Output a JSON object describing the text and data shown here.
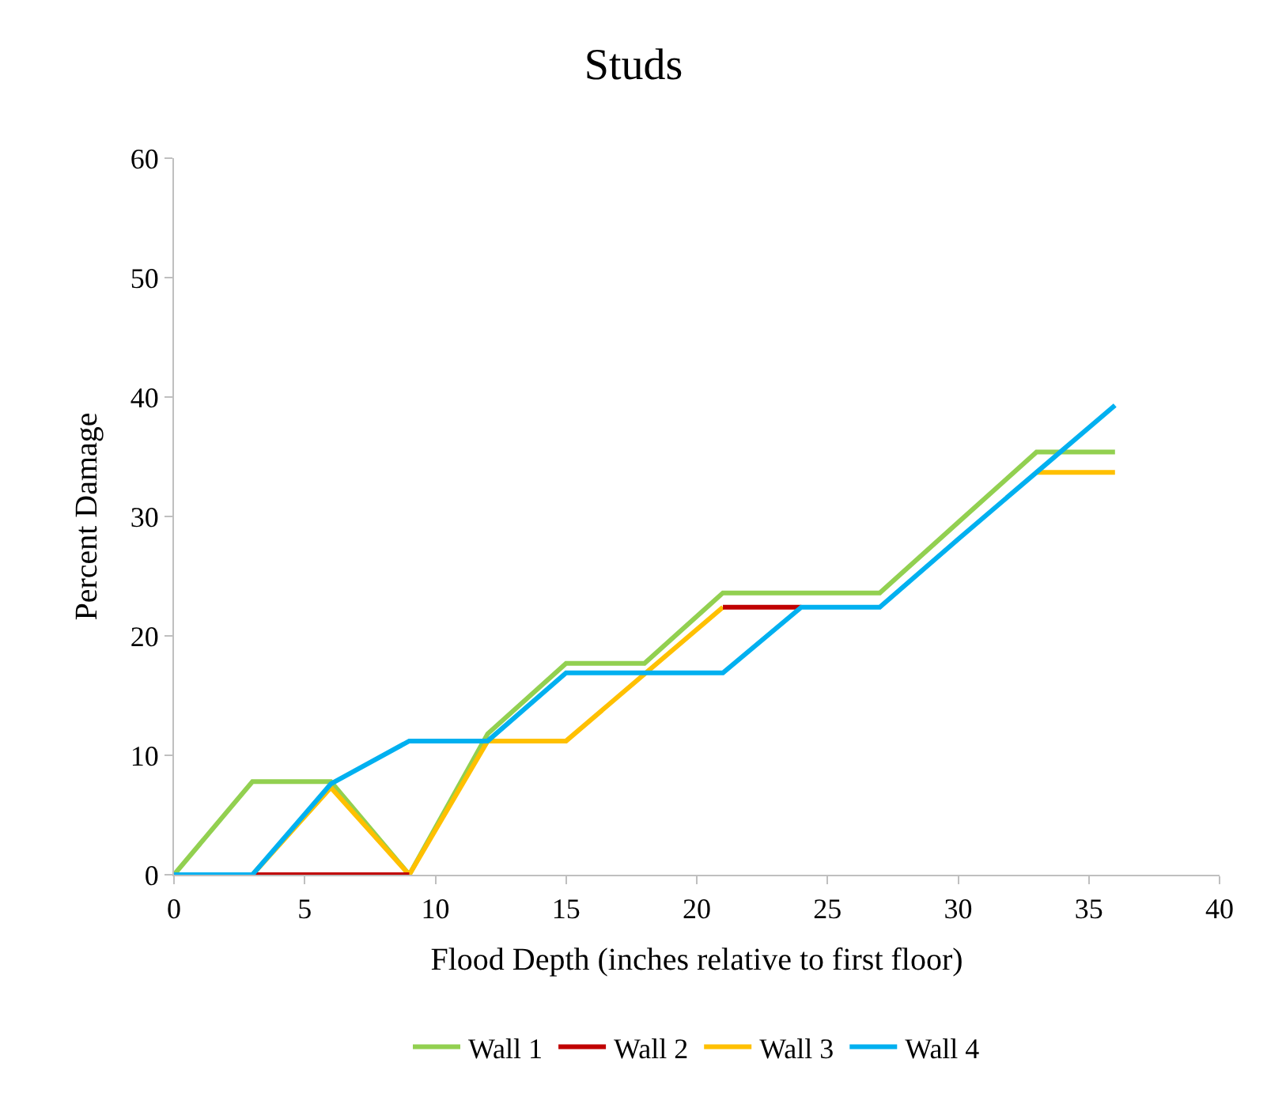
{
  "chart_data": {
    "type": "line",
    "title": "Studs",
    "xlabel": "Flood Depth (inches relative to first floor)",
    "ylabel": "Percent Damage",
    "x": [
      0,
      3,
      6,
      9,
      12,
      15,
      18,
      21,
      24,
      27,
      30,
      33,
      36
    ],
    "series": [
      {
        "name": "Wall 1",
        "color": "#92d050",
        "values": [
          0,
          7.8,
          7.8,
          0,
          11.8,
          17.7,
          17.7,
          23.6,
          23.6,
          23.6,
          29.5,
          35.4,
          35.4
        ]
      },
      {
        "name": "Wall 2",
        "color": "#c00000",
        "values": [
          null,
          0,
          0,
          0,
          null,
          null,
          null,
          22.4,
          22.4,
          null,
          null,
          null,
          null
        ]
      },
      {
        "name": "Wall 3",
        "color": "#ffc000",
        "values": [
          0,
          0,
          7.3,
          0,
          11.2,
          11.2,
          16.8,
          22.4,
          null,
          null,
          null,
          33.7,
          33.7
        ]
      },
      {
        "name": "Wall 4",
        "color": "#00b0f0",
        "values": [
          0,
          0,
          7.6,
          11.2,
          11.2,
          16.9,
          16.9,
          16.9,
          22.4,
          22.4,
          28.1,
          33.7,
          39.3
        ]
      }
    ],
    "xlim": [
      0,
      40
    ],
    "xticks": [
      0,
      5,
      10,
      15,
      20,
      25,
      30,
      35,
      40
    ],
    "ylim": [
      0,
      60
    ],
    "yticks": [
      0,
      10,
      20,
      30,
      40,
      50,
      60
    ],
    "grid": false,
    "legend": "bottom",
    "marker": "none",
    "line_style": "solid"
  }
}
